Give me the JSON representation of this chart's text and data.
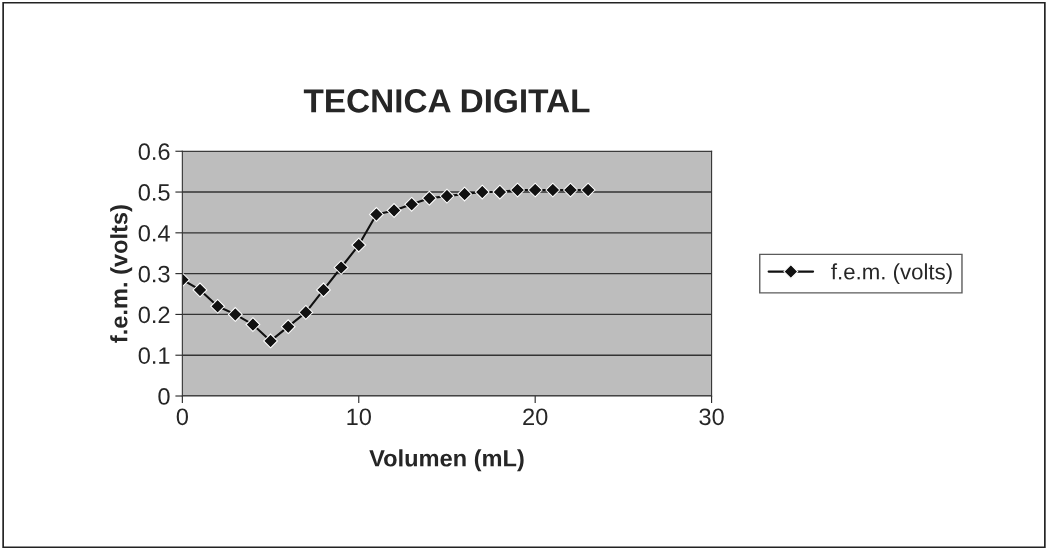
{
  "chart_data": {
    "type": "line",
    "title": "TECNICA DIGITAL",
    "xlabel": "Volumen (mL)",
    "ylabel": "f.e.m. (volts)",
    "x": [
      0,
      1,
      2,
      3,
      4,
      5,
      6,
      7,
      8,
      9,
      10,
      11,
      12,
      13,
      14,
      15,
      16,
      17,
      18,
      19,
      20,
      21,
      22,
      23
    ],
    "series": [
      {
        "name": "f.e.m. (volts)",
        "color": "#111111",
        "values": [
          0.285,
          0.26,
          0.22,
          0.2,
          0.175,
          0.135,
          0.17,
          0.205,
          0.26,
          0.315,
          0.37,
          0.445,
          0.455,
          0.47,
          0.485,
          0.49,
          0.495,
          0.5,
          0.5,
          0.505,
          0.505,
          0.505,
          0.505,
          0.505
        ]
      }
    ],
    "xlim": [
      0,
      30
    ],
    "xticks": [
      0,
      10,
      20,
      30
    ],
    "ylim": [
      0,
      0.6
    ],
    "yticks": [
      0,
      0.1,
      0.2,
      0.3,
      0.4,
      0.5,
      0.6
    ],
    "grid": "y",
    "legend": "right",
    "marker": "diamond",
    "line_style": "solid"
  }
}
